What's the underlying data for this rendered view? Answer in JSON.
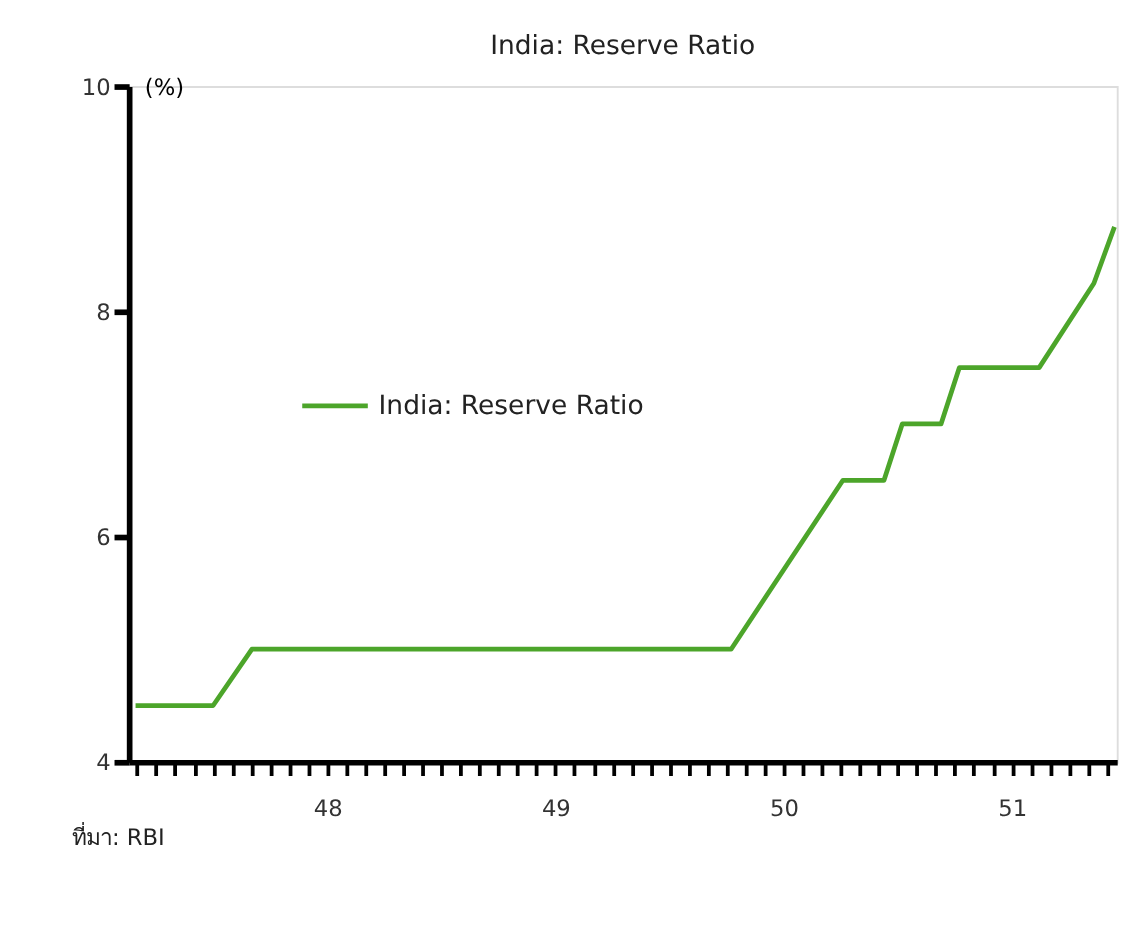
{
  "chart_data": {
    "type": "line",
    "title": "India: Reserve Ratio",
    "ylabel": "(%)",
    "annotations": [
      "ที่มา: RBI"
    ],
    "series": [
      {
        "name": "India: Reserve Ratio",
        "color": "#4ca52a",
        "x": [
          47.16,
          47.5,
          47.67,
          49.77,
          50.26,
          50.44,
          50.52,
          50.69,
          50.77,
          51.12,
          51.36,
          51.45
        ],
        "values": [
          4.5,
          4.5,
          5.0,
          5.0,
          6.5,
          6.5,
          7.0,
          7.0,
          7.5,
          7.5,
          8.25,
          8.75
        ]
      }
    ],
    "xlim": [
      47.13,
      51.46
    ],
    "ylim": [
      4,
      10
    ],
    "yticks": [
      4,
      6,
      8,
      10
    ],
    "xticks": [
      {
        "value": 47.167,
        "label": null
      },
      {
        "value": 47.25,
        "label": null
      },
      {
        "value": 47.333,
        "label": null
      },
      {
        "value": 47.417,
        "label": null
      },
      {
        "value": 47.5,
        "label": null
      },
      {
        "value": 47.583,
        "label": null
      },
      {
        "value": 47.667,
        "label": null
      },
      {
        "value": 47.75,
        "label": null
      },
      {
        "value": 47.833,
        "label": null
      },
      {
        "value": 47.917,
        "label": null
      },
      48,
      {
        "value": 48.083,
        "label": null
      },
      {
        "value": 48.167,
        "label": null
      },
      {
        "value": 48.25,
        "label": null
      },
      {
        "value": 48.333,
        "label": null
      },
      {
        "value": 48.417,
        "label": null
      },
      {
        "value": 48.5,
        "label": null
      },
      {
        "value": 48.583,
        "label": null
      },
      {
        "value": 48.667,
        "label": null
      },
      {
        "value": 48.75,
        "label": null
      },
      {
        "value": 48.833,
        "label": null
      },
      {
        "value": 48.917,
        "label": null
      },
      49,
      {
        "value": 49.083,
        "label": null
      },
      {
        "value": 49.167,
        "label": null
      },
      {
        "value": 49.25,
        "label": null
      },
      {
        "value": 49.333,
        "label": null
      },
      {
        "value": 49.417,
        "label": null
      },
      {
        "value": 49.5,
        "label": null
      },
      {
        "value": 49.583,
        "label": null
      },
      {
        "value": 49.667,
        "label": null
      },
      {
        "value": 49.75,
        "label": null
      },
      {
        "value": 49.833,
        "label": null
      },
      {
        "value": 49.917,
        "label": null
      },
      50,
      {
        "value": 50.083,
        "label": null
      },
      {
        "value": 50.167,
        "label": null
      },
      {
        "value": 50.25,
        "label": null
      },
      {
        "value": 50.333,
        "label": null
      },
      {
        "value": 50.417,
        "label": null
      },
      {
        "value": 50.5,
        "label": null
      },
      {
        "value": 50.583,
        "label": null
      },
      {
        "value": 50.667,
        "label": null
      },
      {
        "value": 50.75,
        "label": null
      },
      {
        "value": 50.833,
        "label": null
      },
      {
        "value": 50.917,
        "label": null
      },
      51,
      {
        "value": 51.083,
        "label": null
      },
      {
        "value": 51.167,
        "label": null
      },
      {
        "value": 51.25,
        "label": null
      },
      {
        "value": 51.333,
        "label": null
      },
      {
        "value": 51.417,
        "label": null
      }
    ],
    "grid": false,
    "legend": "left",
    "marker": "none",
    "line_style": "solid"
  }
}
